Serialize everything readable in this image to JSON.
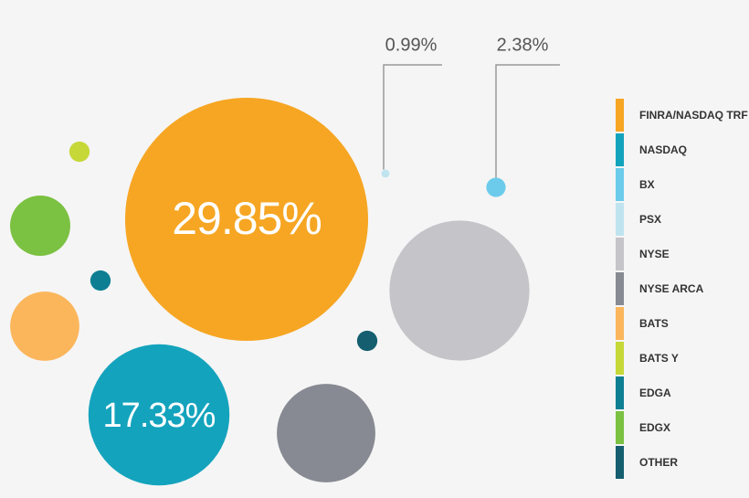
{
  "chart_data": {
    "type": "bubble",
    "categories": [
      "FINRA/NASDAQ TRF",
      "NASDAQ",
      "BX",
      "PSX",
      "NYSE",
      "NYSE ARCA",
      "BATS",
      "BATS Y",
      "EDGA",
      "EDGX",
      "OTHER"
    ],
    "values": [
      29.85,
      17.33,
      2.38,
      0.99,
      17.2,
      12.1,
      8.5,
      2.5,
      2.5,
      7.4,
      2.5
    ],
    "value_labels": [
      "29.85%",
      "17.33%",
      "2.38%",
      "0.99%",
      null,
      null,
      null,
      null,
      null,
      null,
      null
    ],
    "colors": [
      "#f6a623",
      "#14a3bd",
      "#6ccbeb",
      "#bfe4f0",
      "#c4c4c9",
      "#878a92",
      "#fbb65c",
      "#c5d838",
      "#0e7f93",
      "#7bc142",
      "#145e6f"
    ]
  }
}
